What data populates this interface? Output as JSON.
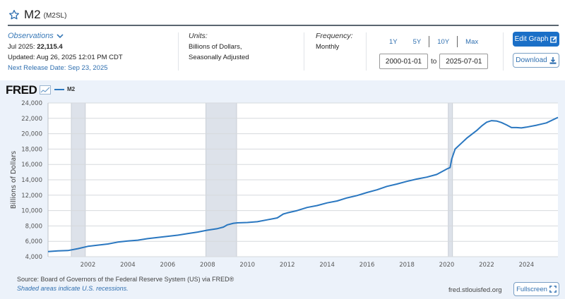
{
  "header": {
    "title": "M2",
    "series_id": "(M2SL)"
  },
  "observations": {
    "label": "Observations",
    "latest_period": "Jul 2025:",
    "latest_value": "22,115.4",
    "updated": "Updated: Aug 26, 2025 12:01 PM CDT",
    "next_release": "Next Release Date: Sep 23, 2025"
  },
  "units": {
    "label": "Units:",
    "line1": "Billions of Dollars,",
    "line2": "Seasonally Adjusted"
  },
  "frequency": {
    "label": "Frequency:",
    "value": "Monthly"
  },
  "range": {
    "links": [
      "1Y",
      "5Y",
      "10Y",
      "Max"
    ],
    "start": "2000-01-01",
    "to": "to",
    "end": "2025-07-01"
  },
  "buttons": {
    "edit_graph": "Edit Graph",
    "download": "Download",
    "fullscreen": "Fullscreen"
  },
  "footer": {
    "source": "Source: Board of Governors of the Federal Reserve System (US) via FRED®",
    "shaded": "Shaded areas indicate U.S. recessions.",
    "site": "fred.stlouisfed.org"
  },
  "logo": "FRED",
  "colors": {
    "line": "#2a77c0",
    "recession": "#dde2ea",
    "accent": "#1a6fc7"
  },
  "chart_data": {
    "type": "line",
    "title": "M2",
    "xlabel": "",
    "ylabel": "Billions of Dollars",
    "legend": [
      {
        "name": "M2",
        "position": "top-left"
      }
    ],
    "xlim": [
      2000.0,
      2025.58
    ],
    "ylim": [
      4000,
      24000
    ],
    "yticks": [
      4000,
      6000,
      8000,
      10000,
      12000,
      14000,
      16000,
      18000,
      20000,
      22000,
      24000
    ],
    "ytick_labels": [
      "4,000",
      "6,000",
      "8,000",
      "10,000",
      "12,000",
      "14,000",
      "16,000",
      "18,000",
      "20,000",
      "22,000",
      "24,000"
    ],
    "xticks": [
      2002,
      2004,
      2006,
      2008,
      2010,
      2012,
      2014,
      2016,
      2018,
      2020,
      2022,
      2024
    ],
    "xtick_labels": [
      "2002",
      "2004",
      "2006",
      "2008",
      "2010",
      "2012",
      "2014",
      "2016",
      "2018",
      "2020",
      "2022",
      "2024"
    ],
    "grid": true,
    "recessions": [
      [
        2001.17,
        2001.87
      ],
      [
        2007.92,
        2009.46
      ],
      [
        2020.08,
        2020.29
      ]
    ],
    "series": [
      {
        "name": "M2",
        "x": [
          2000.0,
          2000.5,
          2001.0,
          2001.5,
          2002.0,
          2002.5,
          2003.0,
          2003.5,
          2004.0,
          2004.5,
          2005.0,
          2005.5,
          2006.0,
          2006.5,
          2007.0,
          2007.5,
          2008.0,
          2008.5,
          2008.8,
          2009.0,
          2009.3,
          2009.5,
          2010.0,
          2010.5,
          2011.0,
          2011.5,
          2011.8,
          2012.0,
          2012.5,
          2013.0,
          2013.5,
          2014.0,
          2014.5,
          2015.0,
          2015.5,
          2016.0,
          2016.5,
          2017.0,
          2017.5,
          2018.0,
          2018.5,
          2019.0,
          2019.5,
          2020.0,
          2020.17,
          2020.25,
          2020.42,
          2020.75,
          2021.0,
          2021.5,
          2021.75,
          2022.0,
          2022.25,
          2022.5,
          2022.75,
          2023.0,
          2023.25,
          2023.5,
          2023.75,
          2024.0,
          2024.5,
          2025.0,
          2025.58
        ],
        "values": [
          4660,
          4750,
          4800,
          5050,
          5350,
          5500,
          5650,
          5900,
          6050,
          6150,
          6350,
          6500,
          6650,
          6800,
          7000,
          7200,
          7450,
          7650,
          7850,
          8150,
          8350,
          8400,
          8450,
          8550,
          8800,
          9050,
          9550,
          9700,
          10000,
          10400,
          10650,
          11000,
          11250,
          11650,
          11950,
          12350,
          12700,
          13150,
          13450,
          13800,
          14100,
          14350,
          14700,
          15400,
          15600,
          16700,
          18000,
          18800,
          19400,
          20400,
          21000,
          21500,
          21700,
          21650,
          21450,
          21150,
          20800,
          20800,
          20750,
          20850,
          21100,
          21400,
          22115.4
        ]
      }
    ]
  }
}
